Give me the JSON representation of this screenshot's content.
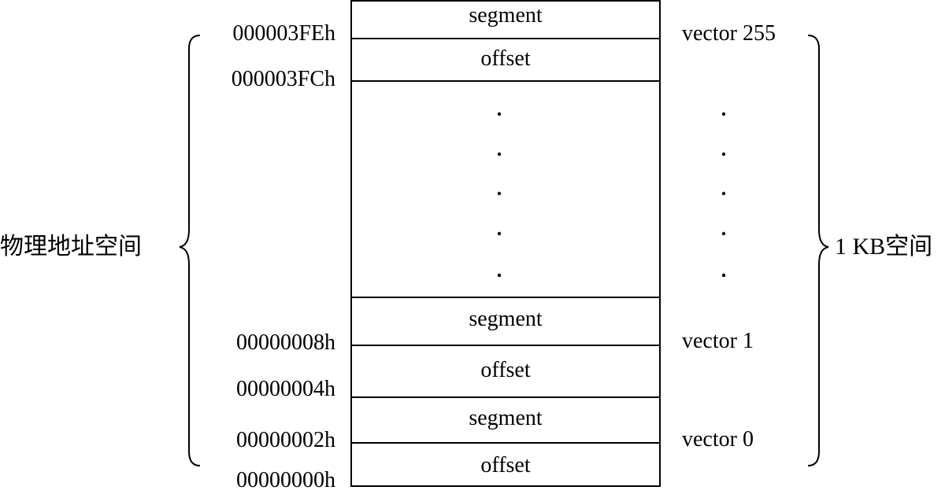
{
  "diagram": {
    "cells": [
      {
        "label": "segment"
      },
      {
        "label": "offset"
      },
      {
        "label": ""
      },
      {
        "label": "segment"
      },
      {
        "label": "offset"
      },
      {
        "label": "segment"
      },
      {
        "label": "offset"
      }
    ],
    "addresses": [
      "000003FEh",
      "000003FCh",
      "00000008h",
      "00000004h",
      "00000002h",
      "00000000h"
    ],
    "vectors": [
      "vector 255",
      "vector 1",
      "vector 0"
    ],
    "left_brace_label": "物理地址空间",
    "right_brace_label": "1 KB空间"
  }
}
